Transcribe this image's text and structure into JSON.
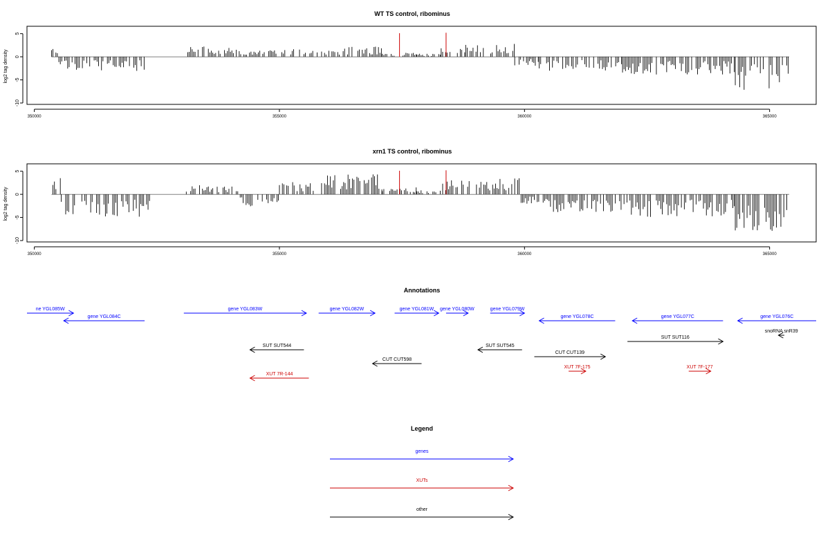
{
  "chart_data": [
    {
      "type": "bar",
      "title": "WT TS control, ribominus",
      "xlabel": "",
      "ylabel": "log2 tag density",
      "xlim": [
        349850,
        365950
      ],
      "ylim": [
        -10,
        6
      ],
      "xticks": [
        350000,
        355000,
        360000,
        365000
      ],
      "yticks": [
        5,
        0,
        -5,
        -10
      ],
      "bar_color": "#000000",
      "highlight_color": "#cc0000",
      "highlights": [
        {
          "x": 357450,
          "value": 5.1
        },
        {
          "x": 358400,
          "value": 5.2
        }
      ],
      "profile": [
        {
          "from": 350350,
          "to": 350500,
          "value": 2.2
        },
        {
          "from": 350500,
          "to": 352250,
          "value": -2.8
        },
        {
          "from": 352250,
          "to": 353100,
          "value": 0
        },
        {
          "from": 353100,
          "to": 354000,
          "value": 2.2
        },
        {
          "from": 354000,
          "to": 354600,
          "value": 1.5
        },
        {
          "from": 354600,
          "to": 355500,
          "value": 1.6
        },
        {
          "from": 355500,
          "to": 356300,
          "value": 1.2
        },
        {
          "from": 356300,
          "to": 357100,
          "value": 2.0
        },
        {
          "from": 357100,
          "to": 357800,
          "value": 0.8
        },
        {
          "from": 357800,
          "to": 358300,
          "value": 0.6
        },
        {
          "from": 358300,
          "to": 358800,
          "value": 1.8
        },
        {
          "from": 358800,
          "to": 359800,
          "value": 2.6
        },
        {
          "from": 359800,
          "to": 360300,
          "value": -1.8
        },
        {
          "from": 360300,
          "to": 362000,
          "value": -2.8
        },
        {
          "from": 362000,
          "to": 364300,
          "value": -3.5
        },
        {
          "from": 364300,
          "to": 365400,
          "value": -6.5
        }
      ]
    },
    {
      "type": "bar",
      "title": "xrn1 TS control, ribominus",
      "xlabel": "",
      "ylabel": "log2 tag density",
      "xlim": [
        349850,
        365950
      ],
      "ylim": [
        -10,
        6
      ],
      "xticks": [
        350000,
        355000,
        360000,
        365000
      ],
      "yticks": [
        5,
        0,
        -5,
        -10
      ],
      "bar_color": "#000000",
      "highlight_color": "#cc0000",
      "highlights": [
        {
          "x": 357450,
          "value": 5.1
        },
        {
          "x": 358400,
          "value": 5.2
        }
      ],
      "profile": [
        {
          "from": 350350,
          "to": 350550,
          "value": 4.5
        },
        {
          "from": 350550,
          "to": 352400,
          "value": -4.5
        },
        {
          "from": 352400,
          "to": 353100,
          "value": 0
        },
        {
          "from": 353100,
          "to": 354200,
          "value": 1.8
        },
        {
          "from": 354200,
          "to": 355000,
          "value": -2.5
        },
        {
          "from": 355000,
          "to": 355800,
          "value": 2.5
        },
        {
          "from": 355800,
          "to": 357100,
          "value": 4.0
        },
        {
          "from": 357100,
          "to": 357800,
          "value": 1.5
        },
        {
          "from": 357800,
          "to": 358300,
          "value": 0.8
        },
        {
          "from": 358300,
          "to": 359900,
          "value": 3.2
        },
        {
          "from": 359900,
          "to": 360500,
          "value": -2.0
        },
        {
          "from": 360500,
          "to": 362000,
          "value": -3.5
        },
        {
          "from": 362000,
          "to": 364300,
          "value": -4.5
        },
        {
          "from": 364300,
          "to": 365400,
          "value": -7.5
        }
      ]
    },
    {
      "type": "annotation-track",
      "title": "Annotations",
      "features": [
        {
          "label": "ne YGL085W",
          "start": 349850,
          "end": 350800,
          "strand": "+",
          "row": 0,
          "color": "#0000ff"
        },
        {
          "label": "gene YGL084C",
          "start": 350600,
          "end": 352250,
          "strand": "-",
          "row": 1,
          "color": "#0000ff"
        },
        {
          "label": "gene YGL083W",
          "start": 353050,
          "end": 355550,
          "strand": "+",
          "row": 0,
          "color": "#0000ff"
        },
        {
          "label": "gene YGL082W",
          "start": 355800,
          "end": 356950,
          "strand": "+",
          "row": 0,
          "color": "#0000ff"
        },
        {
          "label": "gene YGL081W",
          "start": 357350,
          "end": 358250,
          "strand": "+",
          "row": 0,
          "color": "#0000ff"
        },
        {
          "label": "gene YGL080W",
          "start": 358400,
          "end": 358850,
          "strand": "+",
          "row": 0,
          "color": "#0000ff"
        },
        {
          "label": "gene YGL079W",
          "start": 359300,
          "end": 360000,
          "strand": "+",
          "row": 0,
          "color": "#0000ff"
        },
        {
          "label": "gene YGL078C",
          "start": 360300,
          "end": 361850,
          "strand": "-",
          "row": 1,
          "color": "#0000ff"
        },
        {
          "label": "gene YGL077C",
          "start": 362200,
          "end": 364050,
          "strand": "-",
          "row": 1,
          "color": "#0000ff"
        },
        {
          "label": "gene YGL076C",
          "start": 364350,
          "end": 365950,
          "strand": "-",
          "row": 1,
          "color": "#0000ff"
        },
        {
          "label": "snoRNA snR39",
          "start": 365180,
          "end": 365300,
          "strand": "-",
          "row": 2,
          "color": "#000000"
        },
        {
          "label": "SUT SUT116",
          "start": 362100,
          "end": 364050,
          "strand": "+",
          "row": 3,
          "color": "#000000"
        },
        {
          "label": "SUT SUT544",
          "start": 354400,
          "end": 355500,
          "strand": "-",
          "row": 4,
          "color": "#000000"
        },
        {
          "label": "SUT SUT545",
          "start": 359050,
          "end": 359950,
          "strand": "-",
          "row": 4,
          "color": "#000000"
        },
        {
          "label": "CUT CUT139",
          "start": 360200,
          "end": 361650,
          "strand": "+",
          "row": 5,
          "color": "#000000"
        },
        {
          "label": "CUT CUT598",
          "start": 356900,
          "end": 357900,
          "strand": "-",
          "row": 6,
          "color": "#000000"
        },
        {
          "label": "XUT 7F-175",
          "start": 360900,
          "end": 361250,
          "strand": "+",
          "row": 7,
          "color": "#cc0000"
        },
        {
          "label": "XUT 7F-177",
          "start": 363350,
          "end": 363800,
          "strand": "+",
          "row": 7,
          "color": "#cc0000"
        },
        {
          "label": "XUT 7R-144",
          "start": 354400,
          "end": 355600,
          "strand": "-",
          "row": 8,
          "color": "#cc0000"
        }
      ]
    },
    {
      "type": "legend",
      "title": "Legend",
      "entries": [
        {
          "label": "genes",
          "color": "#0000ff"
        },
        {
          "label": "XUTs",
          "color": "#cc0000"
        },
        {
          "label": "other",
          "color": "#000000"
        }
      ]
    }
  ]
}
